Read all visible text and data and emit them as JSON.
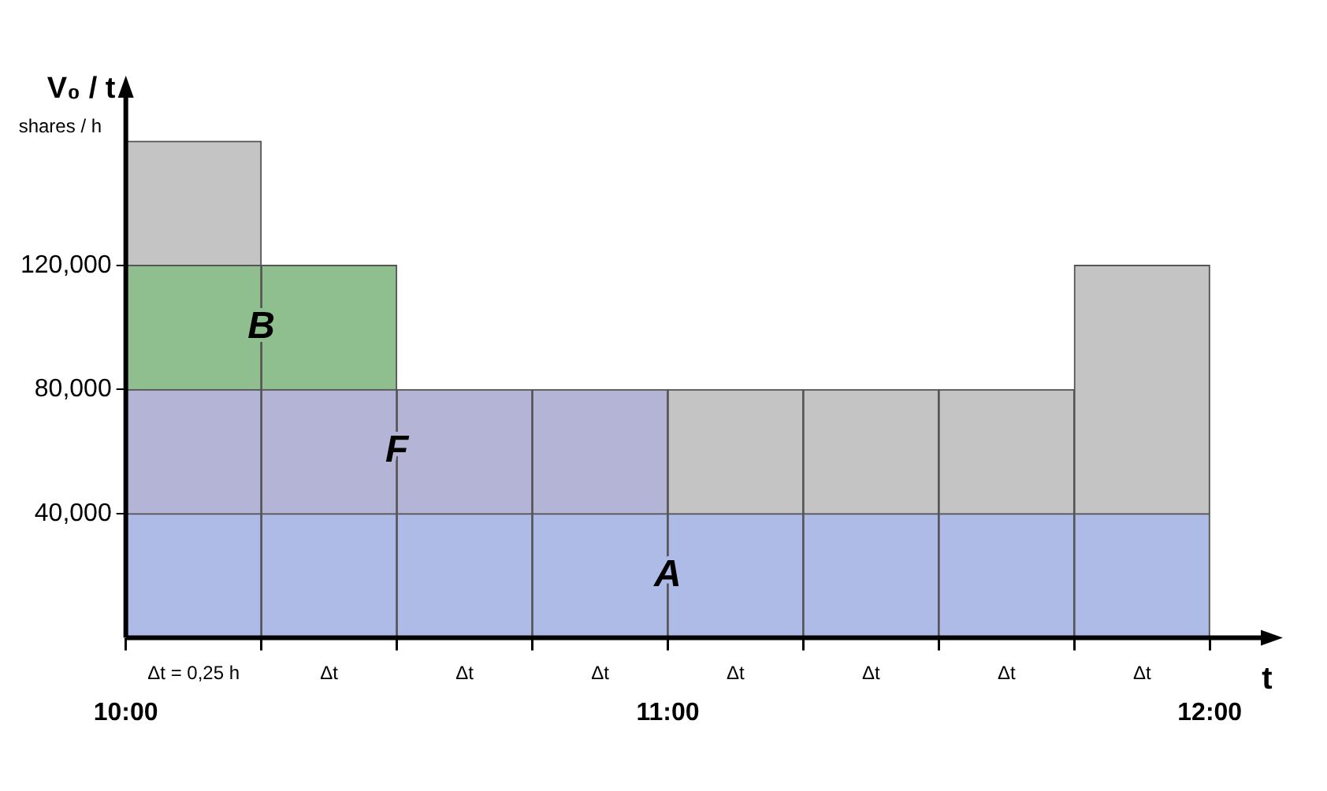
{
  "chart_data": {
    "type": "bar",
    "stacked": true,
    "ylabel": "V₀ / t",
    "xlabel": "t",
    "annotations": [
      "shares / h",
      "Δt = 0,25 h",
      "Δt",
      "Δt",
      "Δt",
      "Δt",
      "Δt",
      "Δt",
      "Δt"
    ],
    "x": [
      10.125,
      10.375,
      10.625,
      10.875,
      11.125,
      11.375,
      11.625,
      11.875
    ],
    "xlim": [
      10,
      12.1
    ],
    "xticks": [
      {
        "value": 10,
        "label": "10:00"
      },
      {
        "value": 10.25,
        "label": null
      },
      {
        "value": 10.5,
        "label": null
      },
      {
        "value": 10.75,
        "label": null
      },
      {
        "value": 11,
        "label": "11:00"
      },
      {
        "value": 11.25,
        "label": null
      },
      {
        "value": 11.5,
        "label": null
      },
      {
        "value": 11.75,
        "label": null
      },
      {
        "value": 12,
        "label": "12:00"
      }
    ],
    "ylim": [
      0,
      175000
    ],
    "yticks": [
      {
        "value": 40000,
        "label": "40,000"
      },
      {
        "value": 80000,
        "label": "80,000"
      },
      {
        "value": 120000,
        "label": "120,000"
      }
    ],
    "series": [
      {
        "name": "A",
        "color": "#aebbe6",
        "values": [
          40000,
          40000,
          40000,
          40000,
          40000,
          40000,
          40000,
          40000
        ]
      },
      {
        "name": "F",
        "color": "#b4b4d6",
        "values": [
          40000,
          40000,
          40000,
          40000,
          null,
          null,
          null,
          null
        ]
      },
      {
        "name": "B",
        "color": "#8fbf8f",
        "values": [
          40000,
          40000,
          null,
          null,
          null,
          null,
          null,
          null
        ]
      },
      {
        "color": "#c4c4c4",
        "values": [
          40000,
          null,
          null,
          null,
          40000,
          40000,
          40000,
          80000
        ]
      }
    ]
  }
}
